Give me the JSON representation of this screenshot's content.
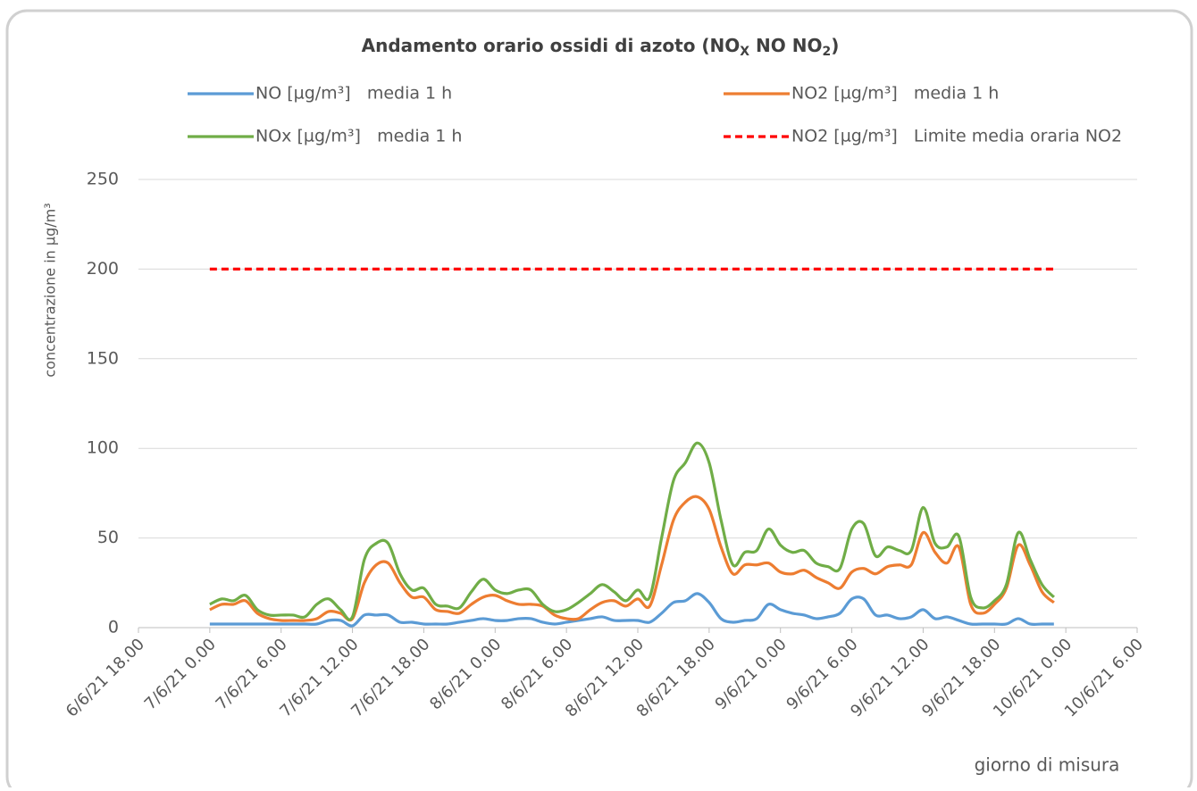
{
  "chart_data": {
    "type": "line",
    "title": [
      "Andamento orario ossidi di azoto (NO",
      "X",
      " NO NO",
      "2",
      ")"
    ],
    "x_label": "giorno di misura",
    "y_label": "concentrazione in µg/m³",
    "x": [
      "7/6/21 0.00",
      "7/6/21 1.00",
      "7/6/21 2.00",
      "7/6/21 3.00",
      "7/6/21 4.00",
      "7/6/21 5.00",
      "7/6/21 6.00",
      "7/6/21 7.00",
      "7/6/21 8.00",
      "7/6/21 9.00",
      "7/6/21 10.00",
      "7/6/21 11.00",
      "7/6/21 12.00",
      "7/6/21 13.00",
      "7/6/21 14.00",
      "7/6/21 15.00",
      "7/6/21 16.00",
      "7/6/21 17.00",
      "7/6/21 18.00",
      "7/6/21 19.00",
      "7/6/21 20.00",
      "7/6/21 21.00",
      "7/6/21 22.00",
      "7/6/21 23.00",
      "8/6/21 0.00",
      "8/6/21 1.00",
      "8/6/21 2.00",
      "8/6/21 3.00",
      "8/6/21 4.00",
      "8/6/21 5.00",
      "8/6/21 6.00",
      "8/6/21 7.00",
      "8/6/21 8.00",
      "8/6/21 9.00",
      "8/6/21 10.00",
      "8/6/21 11.00",
      "8/6/21 12.00",
      "8/6/21 13.00",
      "8/6/21 14.00",
      "8/6/21 15.00",
      "8/6/21 16.00",
      "8/6/21 17.00",
      "8/6/21 18.00",
      "8/6/21 19.00",
      "8/6/21 20.00",
      "8/6/21 21.00",
      "8/6/21 22.00",
      "8/6/21 23.00",
      "9/6/21 0.00",
      "9/6/21 1.00",
      "9/6/21 2.00",
      "9/6/21 3.00",
      "9/6/21 4.00",
      "9/6/21 5.00",
      "9/6/21 6.00",
      "9/6/21 7.00",
      "9/6/21 8.00",
      "9/6/21 9.00",
      "9/6/21 10.00",
      "9/6/21 11.00",
      "9/6/21 12.00",
      "9/6/21 13.00",
      "9/6/21 14.00",
      "9/6/21 15.00",
      "9/6/21 16.00",
      "9/6/21 17.00",
      "9/6/21 18.00",
      "9/6/21 19.00",
      "9/6/21 20.00",
      "9/6/21 21.00",
      "9/6/21 22.00",
      "9/6/21 23.00"
    ],
    "series": [
      {
        "name": "NO [µg/m³]   media 1 h",
        "color": "#5b9bd5",
        "values": [
          2,
          2,
          2,
          2,
          2,
          2,
          2,
          2,
          2,
          2,
          4,
          4,
          1,
          7,
          7,
          7,
          3,
          3,
          2,
          2,
          2,
          3,
          4,
          5,
          4,
          4,
          5,
          5,
          3,
          2,
          3,
          4,
          5,
          6,
          4,
          4,
          4,
          3,
          8,
          14,
          15,
          19,
          14,
          5,
          3,
          4,
          5,
          13,
          10,
          8,
          7,
          5,
          6,
          8,
          16,
          16,
          7,
          7,
          5,
          6,
          10,
          5,
          6,
          4,
          2,
          2,
          2,
          2,
          5,
          2,
          2,
          2
        ]
      },
      {
        "name": "NO2 [µg/m³]   media 1 h",
        "color": "#ed7d31",
        "values": [
          10,
          13,
          13,
          15,
          8,
          5,
          4,
          4,
          4,
          5,
          9,
          8,
          5,
          25,
          35,
          36,
          25,
          17,
          17,
          10,
          9,
          8,
          13,
          17,
          18,
          15,
          13,
          13,
          12,
          7,
          5,
          5,
          10,
          14,
          15,
          12,
          16,
          12,
          35,
          60,
          70,
          73,
          66,
          45,
          30,
          35,
          35,
          36,
          31,
          30,
          32,
          28,
          25,
          22,
          31,
          33,
          30,
          34,
          35,
          35,
          53,
          42,
          36,
          45,
          13,
          8,
          13,
          22,
          46,
          35,
          20,
          14
        ]
      },
      {
        "name": "NOx [µg/m³]   media 1 h",
        "color": "#70ad47",
        "values": [
          13,
          16,
          15,
          18,
          10,
          7,
          7,
          7,
          6,
          13,
          16,
          10,
          6,
          38,
          47,
          47,
          30,
          21,
          22,
          13,
          12,
          11,
          20,
          27,
          21,
          19,
          21,
          21,
          13,
          9,
          10,
          14,
          19,
          24,
          20,
          15,
          21,
          17,
          50,
          82,
          92,
          103,
          92,
          60,
          35,
          42,
          43,
          55,
          46,
          42,
          43,
          36,
          34,
          33,
          55,
          58,
          40,
          45,
          43,
          43,
          67,
          47,
          45,
          51,
          17,
          11,
          15,
          24,
          53,
          38,
          24,
          17
        ]
      },
      {
        "name": "NO2 [µg/m³]   Limite media oraria NO2",
        "color": "#ff0000",
        "dash": "dashed",
        "values": [
          200,
          200,
          200,
          200,
          200,
          200,
          200,
          200,
          200,
          200,
          200,
          200,
          200,
          200,
          200,
          200,
          200,
          200,
          200,
          200,
          200,
          200,
          200,
          200,
          200,
          200,
          200,
          200,
          200,
          200,
          200,
          200,
          200,
          200,
          200,
          200,
          200,
          200,
          200,
          200,
          200,
          200,
          200,
          200,
          200,
          200,
          200,
          200,
          200,
          200,
          200,
          200,
          200,
          200,
          200,
          200,
          200,
          200,
          200,
          200,
          200,
          200,
          200,
          200,
          200,
          200,
          200,
          200,
          200,
          200,
          200,
          200
        ]
      }
    ],
    "xlim": [
      "6/6/21 18.00",
      "10/6/21 6.00"
    ],
    "xticks": [
      "6/6/21 18.00",
      "7/6/21 0.00",
      "7/6/21 6.00",
      "7/6/21 12.00",
      "7/6/21 18.00",
      "8/6/21 0.00",
      "8/6/21 6.00",
      "8/6/21 12.00",
      "8/6/21 18.00",
      "9/6/21 0.00",
      "9/6/21 6.00",
      "9/6/21 12.00",
      "9/6/21 18.00",
      "10/6/21 0.00",
      "10/6/21 6.00"
    ],
    "ylim": [
      0,
      250
    ],
    "yticks": [
      0,
      50,
      100,
      150,
      200,
      250
    ],
    "grid": true,
    "legend": "top"
  }
}
